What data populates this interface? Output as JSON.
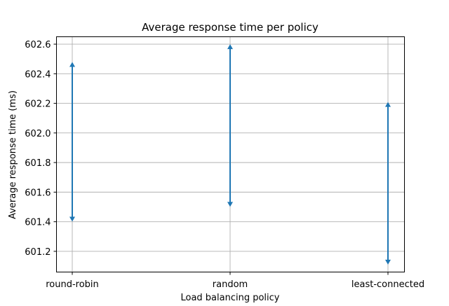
{
  "chart_data": {
    "type": "range-arrow",
    "title": "Average response time per policy",
    "xlabel": "Load balancing policy",
    "ylabel": "Average response time (ms)",
    "categories": [
      "round-robin",
      "random",
      "least-connected"
    ],
    "ranges": [
      {
        "category": "round-robin",
        "low": 601.41,
        "high": 602.47
      },
      {
        "category": "random",
        "low": 601.51,
        "high": 602.59
      },
      {
        "category": "least-connected",
        "low": 601.12,
        "high": 602.2
      }
    ],
    "ylim": [
      601.06,
      602.65
    ],
    "yticks": [
      "601.2",
      "601.4",
      "601.6",
      "601.8",
      "602.0",
      "602.2",
      "602.4",
      "602.6"
    ],
    "grid": true,
    "colors": {
      "series": "#1f77b4",
      "grid": "#b0b0b0"
    }
  }
}
